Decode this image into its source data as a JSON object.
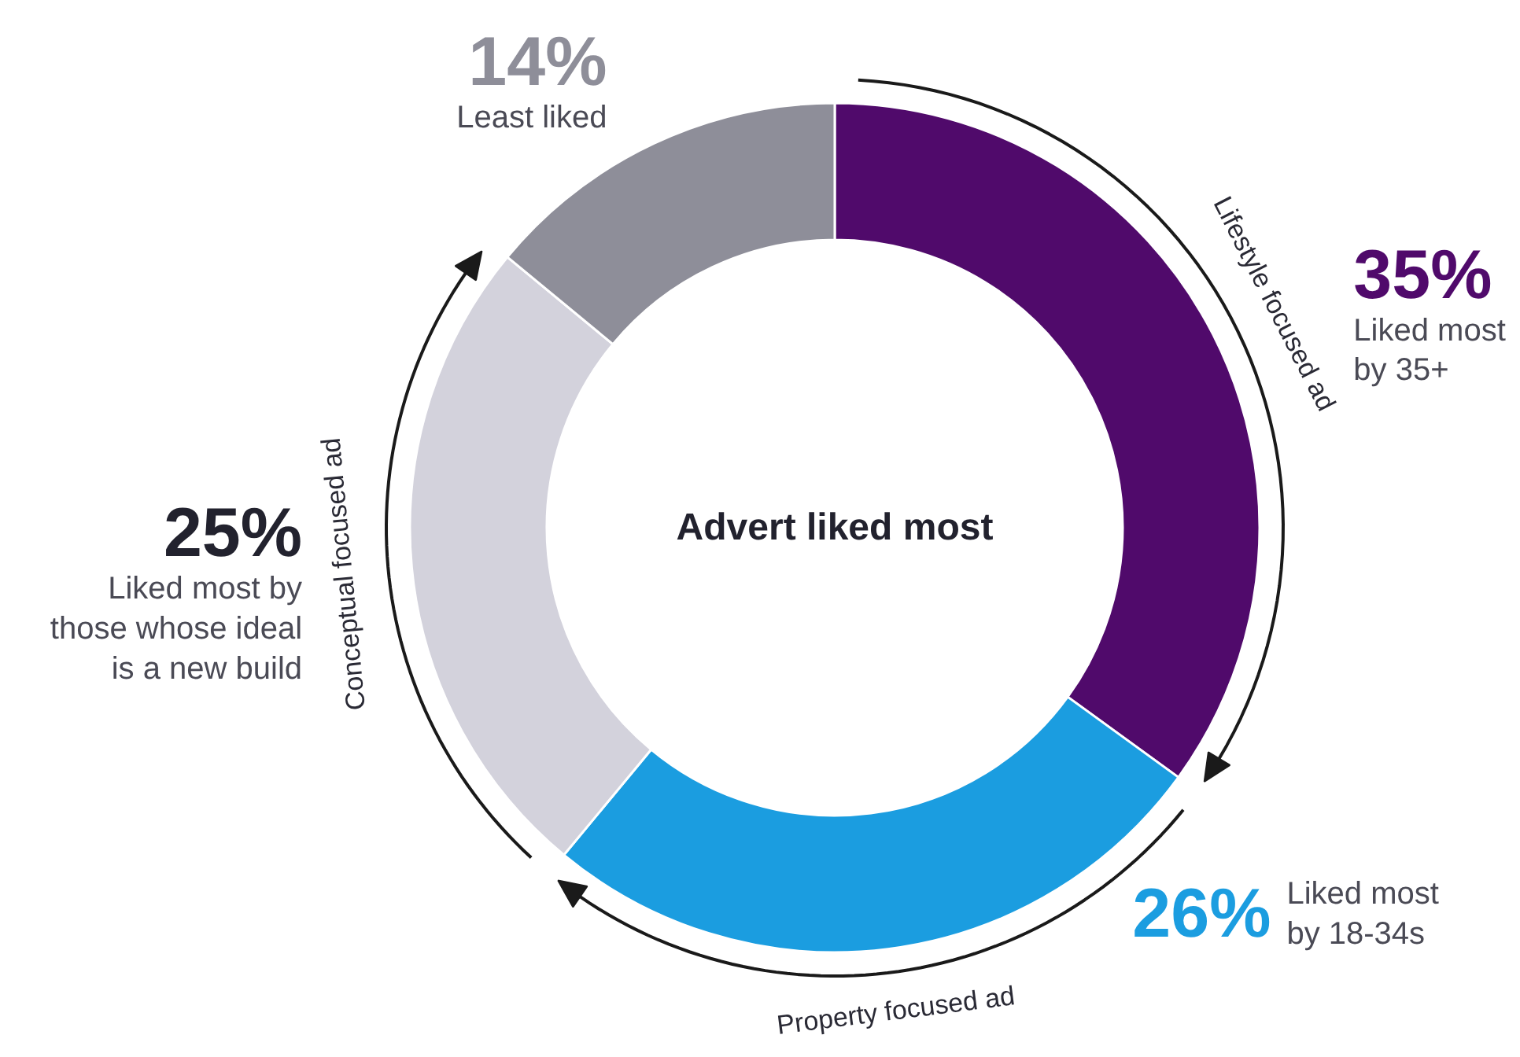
{
  "chart_data": {
    "type": "donut",
    "title": "Advert liked most",
    "categories": [
      "Lifestyle focused ad",
      "Property focused ad",
      "Conceptual focused ad",
      null
    ],
    "values": [
      35,
      26,
      25,
      14
    ],
    "colors": [
      "#500a6b",
      "#1b9de0",
      "#d3d2dc",
      "#8e8e99"
    ],
    "value_labels": [
      "35%",
      "26%",
      "25%",
      "14%"
    ],
    "annotations": [
      "Liked most\nby 35+",
      "Liked most\nby 18-34s",
      "Liked most by\nthose whose ideal\nis a new build",
      "Least liked"
    ]
  }
}
